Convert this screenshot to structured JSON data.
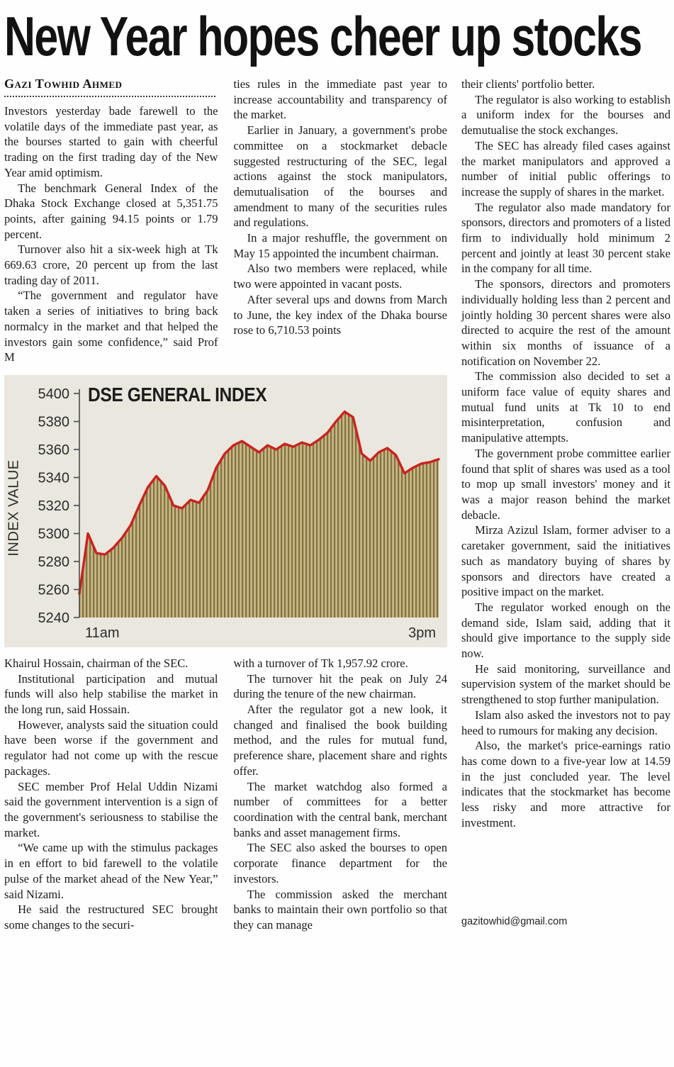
{
  "article": {
    "headline": "New Year hopes cheer up stocks",
    "byline": "Gazi Towhid Ahmed",
    "email": "gazitowhid@gmail.com",
    "col1_top": [
      "Investors yesterday bade farewell to the volatile days of the immediate past year, as the bourses started to gain with cheerful trading on the first trading day of the New Year amid optimism.",
      "The benchmark General Index of the Dhaka Stock Exchange closed at 5,351.75 points, after gaining 94.15 points or 1.79 percent.",
      "Turnover also hit a six-week high at Tk 669.63 crore, 20 percent up from the last trading day of 2011.",
      "“The government and regulator have taken a series of initiatives to bring back normalcy in the market and that helped the investors gain some confidence,” said Prof M"
    ],
    "col2_top": [
      "ties rules in the immediate past year to increase accountability and transparency of the market.",
      "Earlier in January, a government's probe committee on a stockmarket debacle suggested restructuring of the SEC, legal actions against the stock manipulators, demutualisation of the bourses and amendment to many of the securities rules and regulations.",
      "In a major reshuffle, the government on May 15 appointed the incumbent chairman.",
      "Also two members were replaced, while two were appointed in vacant posts.",
      "After several ups and downs from March to June, the key index of the Dhaka bourse rose to 6,710.53 points"
    ],
    "col1_bottom": [
      "Khairul Hossain, chairman of the SEC.",
      "Institutional participation and mutual funds will also help stabilise the market in the long run, said Hossain.",
      "However, analysts said the situation could have been worse if the government and regulator had not come up with the rescue packages.",
      "SEC member Prof Helal Uddin Nizami said the government intervention is a sign of the government's seriousness to stabilise the market.",
      "“We came up with the stimulus packages in en effort to bid farewell to the volatile pulse of the market ahead of the New Year,” said Nizami.",
      "He said the restructured SEC brought some changes to the securi-"
    ],
    "col2_bottom": [
      "with a turnover of Tk 1,957.92 crore.",
      "The turnover hit the peak on July 24 during the tenure of the new chairman.",
      "After the regulator got a new look, it changed and finalised the book building method, and the rules for mutual fund, preference share, placement share and rights offer.",
      "The market watchdog also formed a number of committees for a better coordination with the central bank, merchant banks and asset management firms.",
      "The SEC also asked the bourses to open corporate finance department for the investors.",
      "The commission asked the merchant banks to maintain their own portfolio so that they can manage"
    ],
    "col3": [
      "their clients' portfolio better.",
      "The regulator is also working to establish a uniform index for the bourses and demutualise the stock exchanges.",
      "The SEC has already filed cases against the market manipulators and approved a number of initial public offerings to increase the supply of shares in the market.",
      "The regulator also made mandatory for sponsors, directors and promoters of a listed firm to individually hold minimum 2 percent and jointly at least 30 percent stake in the company for all time.",
      "The sponsors, directors and promoters individually holding less than 2 percent and jointly holding 30 percent shares were also directed to acquire the rest of the amount within six months of issuance of a notification on November 22.",
      "The commission also decided to set a uniform face value of equity shares and mutual fund units at Tk 10 to end misinterpretation, confusion and manipulative attempts.",
      "The government probe committee earlier found that split of shares was used as a tool to mop up small investors' money and it was a major reason behind the market debacle.",
      "Mirza Azizul Islam, former adviser to a caretaker government, said the initiatives such as mandatory buying of shares by sponsors and directors have created a positive impact on the market.",
      "The regulator worked enough on the demand side, Islam said, adding that it should give importance to the supply side now.",
      "He said monitoring, surveillance and supervision system of the market should be strengthened to stop further manipulation.",
      "Islam also asked the investors not to pay heed to rumours for making any decision.",
      "Also, the market's price-earnings ratio has come down to a five-year low at 14.59 in the just concluded year. The level indicates that the stockmarket has become less risky and more attractive for investment."
    ]
  },
  "chart_data": {
    "type": "area",
    "title": "DSE GENERAL INDEX",
    "ylabel": "INDEX VALUE",
    "x_start_label": "11am",
    "x_end_label": "3pm",
    "ylim": [
      5240,
      5400
    ],
    "yticks": [
      5240,
      5260,
      5280,
      5300,
      5320,
      5340,
      5360,
      5380,
      5400
    ],
    "values": [
      5257,
      5300,
      5286,
      5285,
      5290,
      5297,
      5306,
      5320,
      5333,
      5341,
      5334,
      5320,
      5318,
      5324,
      5322,
      5331,
      5347,
      5357,
      5363,
      5366,
      5362,
      5358,
      5363,
      5360,
      5364,
      5362,
      5365,
      5363,
      5367,
      5372,
      5380,
      5387,
      5383,
      5357,
      5352,
      5358,
      5361,
      5356,
      5343,
      5347,
      5350,
      5351,
      5353
    ],
    "grid": false,
    "legend": "none",
    "colors": {
      "line": "#c8231f",
      "fill_base": "#c7b686",
      "fill_stripe": "#83713f",
      "background": "#e9e7de",
      "axis": "#4a4a4a",
      "tick_text": "#2b2b2b"
    }
  }
}
